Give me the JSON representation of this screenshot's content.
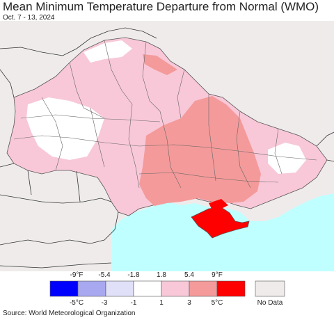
{
  "title": "Mean Minimum Temperature Departure from Normal (WMO)",
  "date_range": "Oct. 7 - 13, 2024",
  "legend": {
    "fahrenheit_ticks": [
      "-9°F",
      "-5.4",
      "-1.8",
      "1.8",
      "5.4",
      "9°F"
    ],
    "celsius_ticks": [
      "-5°C",
      "-3",
      "-1",
      "1",
      "3",
      "5°C"
    ],
    "bins": [
      {
        "color": "#0000ff"
      },
      {
        "color": "#a8a8f0"
      },
      {
        "color": "#e0e0f8"
      },
      {
        "color": "#ffffff"
      },
      {
        "color": "#f8c8d8"
      },
      {
        "color": "#f49a9a"
      },
      {
        "color": "#ff0000"
      }
    ],
    "no_data_label": "No Data",
    "no_data_color": "#efebeb"
  },
  "colors": {
    "sea": "#c0ffff",
    "no_data_land": "#efebeb",
    "border": "#333333"
  },
  "source": "Source: World Meteorological Organization"
}
